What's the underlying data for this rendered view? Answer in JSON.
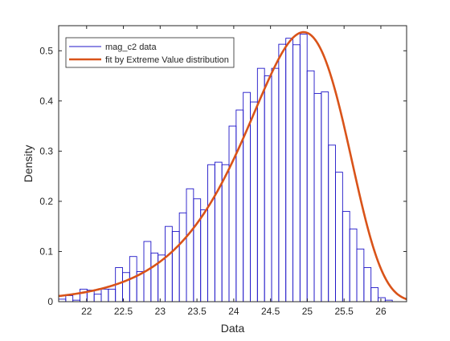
{
  "chart_data": {
    "type": "bar",
    "xlabel": "Data",
    "ylabel": "Density",
    "xlim": [
      21.62,
      26.35
    ],
    "ylim": [
      0,
      0.55
    ],
    "grid": false,
    "legend_position": "top-left",
    "xticks": [
      22,
      22.5,
      23,
      23.5,
      24,
      24.5,
      25,
      25.5,
      26
    ],
    "xtick_labels": [
      "22",
      "22.5",
      "23",
      "23.5",
      "24",
      "24.5",
      "25",
      "25.5",
      "26"
    ],
    "yticks": [
      0,
      0.1,
      0.2,
      0.3,
      0.4,
      0.5
    ],
    "ytick_labels": [
      "0",
      "0.1",
      "0.2",
      "0.3",
      "0.4",
      "0.5"
    ],
    "histogram": {
      "name": "mag_c2 data",
      "color": "#1f16c8",
      "bin_width": 0.0965,
      "bin_start": 21.62,
      "values": [
        0.005,
        0.012,
        0.003,
        0.025,
        0.023,
        0.015,
        0.025,
        0.025,
        0.068,
        0.058,
        0.09,
        0.06,
        0.12,
        0.097,
        0.093,
        0.15,
        0.14,
        0.177,
        0.225,
        0.205,
        0.183,
        0.273,
        0.278,
        0.273,
        0.35,
        0.382,
        0.417,
        0.398,
        0.465,
        0.45,
        0.465,
        0.513,
        0.525,
        0.512,
        0.533,
        0.46,
        0.415,
        0.418,
        0.312,
        0.258,
        0.18,
        0.145,
        0.105,
        0.068,
        0.028,
        0.008,
        0.003
      ]
    },
    "fit": {
      "name": "fit by Extreme Value distribution",
      "color": "#d95319",
      "mu": 24.95,
      "sigma": 0.685
    }
  }
}
